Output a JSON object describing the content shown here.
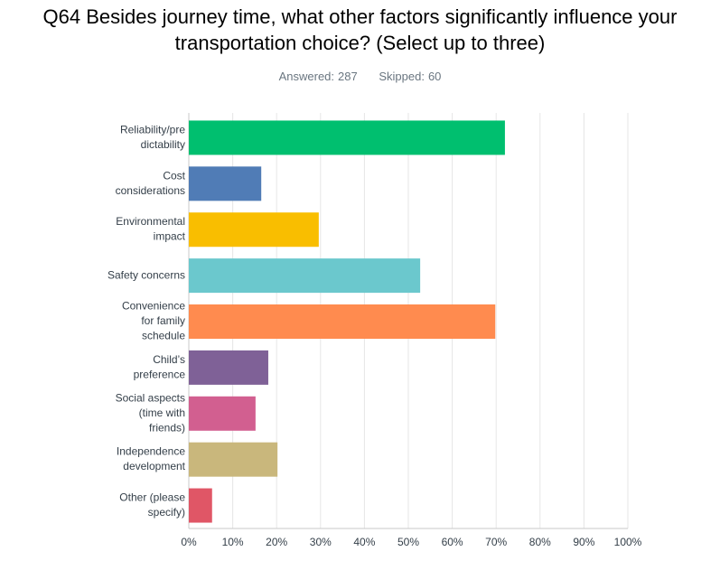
{
  "chart_data": {
    "type": "bar",
    "title": "Q64 Besides journey time, what other factors significantly influence your transportation choice? (Select up to three)",
    "answered_label": "Answered:",
    "answered": 287,
    "skipped_label": "Skipped:",
    "skipped": 60,
    "categories": [
      [
        "Reliability/pre",
        "dictability"
      ],
      [
        "Cost",
        "considerations"
      ],
      [
        "Environmental",
        "impact"
      ],
      [
        "Safety concerns"
      ],
      [
        "Convenience",
        "for family",
        "schedule"
      ],
      [
        "Child’s",
        "preference"
      ],
      [
        "Social aspects",
        "(time with",
        "friends)"
      ],
      [
        "Independence",
        "development"
      ],
      [
        "Other (please",
        "specify)"
      ]
    ],
    "values": [
      72.0,
      16.5,
      29.6,
      52.7,
      69.8,
      18.1,
      15.2,
      20.2,
      5.3
    ],
    "colors": [
      "#00bf6f",
      "#507cb6",
      "#f9be00",
      "#6bc8cd",
      "#ff8b4f",
      "#7f6197",
      "#d25f90",
      "#c9b77c",
      "#e05666"
    ],
    "xlim": [
      0,
      100
    ],
    "xticks": [
      {
        "value": 0,
        "label": "0%"
      },
      {
        "value": 10,
        "label": "10%"
      },
      {
        "value": 20,
        "label": "20%"
      },
      {
        "value": 30,
        "label": "30%"
      },
      {
        "value": 40,
        "label": "40%"
      },
      {
        "value": 50,
        "label": "50%"
      },
      {
        "value": 60,
        "label": "60%"
      },
      {
        "value": 70,
        "label": "70%"
      },
      {
        "value": 80,
        "label": "80%"
      },
      {
        "value": 90,
        "label": "90%"
      },
      {
        "value": 100,
        "label": "100%"
      }
    ],
    "grid": true
  }
}
